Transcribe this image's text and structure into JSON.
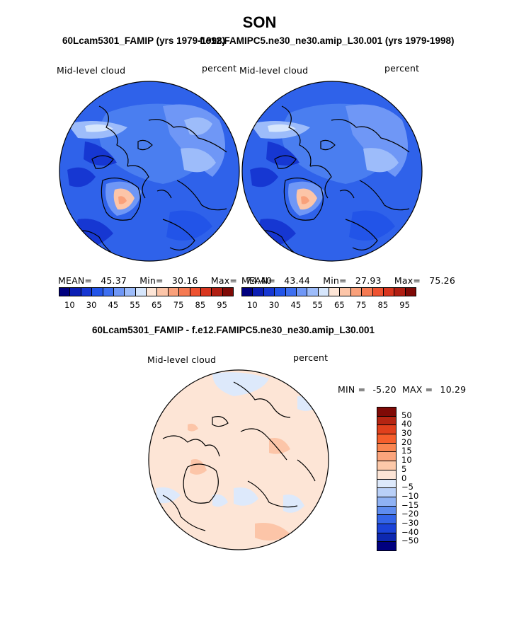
{
  "figure": {
    "season": "SON",
    "left_title": "60Lcam5301_FAMIP (yrs 1979-1998)",
    "right_title": "f.e12.FAMIPC5.ne30_ne30.amip_L30.001 (yrs 1979-1998)",
    "diff_title": "60Lcam5301_FAMIP - f.e12.FAMIPC5.ne30_ne30.amip_L30.001"
  },
  "panels": {
    "left": {
      "variable": "Mid-level cloud",
      "units": "percent",
      "stats": {
        "mean_label": "MEAN=",
        "mean": "45.37",
        "min_label": "Min=",
        "min": "30.16",
        "max_label": "Max=",
        "max": "74.40"
      }
    },
    "right": {
      "variable": "Mid-level cloud",
      "units": "percent",
      "stats": {
        "mean_label": "MEAN=",
        "mean": "43.44",
        "min_label": "Min=",
        "min": "27.93",
        "max_label": "Max=",
        "max": "75.26"
      }
    },
    "diff": {
      "variable": "Mid-level cloud",
      "units": "percent",
      "stats": {
        "min_label": "MIN =",
        "min": "-5.20",
        "max_label": "MAX =",
        "max": "10.29"
      }
    }
  },
  "colorbars": {
    "horizontal": {
      "colors": [
        "#00007f",
        "#0b1eb4",
        "#1637d2",
        "#2254e8",
        "#3d6ff0",
        "#6f97f6",
        "#9dbcfa",
        "#d6e6fc",
        "#fde5d6",
        "#fcc5a8",
        "#f9a07a",
        "#f57a52",
        "#ee5230",
        "#d8351e",
        "#b01e12",
        "#7f0a06"
      ],
      "labels": [
        "10",
        "30",
        "45",
        "55",
        "65",
        "75",
        "85",
        "95"
      ]
    },
    "vertical": {
      "colors": [
        "#7f0a06",
        "#b52512",
        "#e0401c",
        "#f55e2b",
        "#f98550",
        "#fba57c",
        "#fdc9a9",
        "#fde5d6",
        "#dde9fb",
        "#b9d0f8",
        "#8fb2f4",
        "#5e8cef",
        "#3465e8",
        "#1b43d8",
        "#0d28b0",
        "#00007f"
      ],
      "labels": [
        "50",
        "40",
        "30",
        "20",
        "15",
        "10",
        "5",
        "0",
        "−5",
        "−10",
        "−15",
        "−20",
        "−30",
        "−40",
        "−50"
      ]
    }
  },
  "chart_data": [
    {
      "type": "heatmap",
      "title": "Mid-level cloud",
      "units": "percent",
      "mean": 45.37,
      "min": 30.16,
      "max": 74.4,
      "levels": [
        10,
        30,
        45,
        55,
        65,
        75,
        85,
        95
      ]
    },
    {
      "type": "heatmap",
      "title": "Mid-level cloud",
      "units": "percent",
      "mean": 43.44,
      "min": 27.93,
      "max": 75.26,
      "levels": [
        10,
        30,
        45,
        55,
        65,
        75,
        85,
        95
      ]
    },
    {
      "type": "heatmap",
      "title": "Mid-level cloud",
      "units": "percent",
      "min": -5.2,
      "max": 10.29,
      "levels": [
        50,
        40,
        30,
        20,
        15,
        10,
        5,
        0,
        -5,
        -10,
        -15,
        -20,
        -30,
        -40,
        -50
      ]
    }
  ]
}
